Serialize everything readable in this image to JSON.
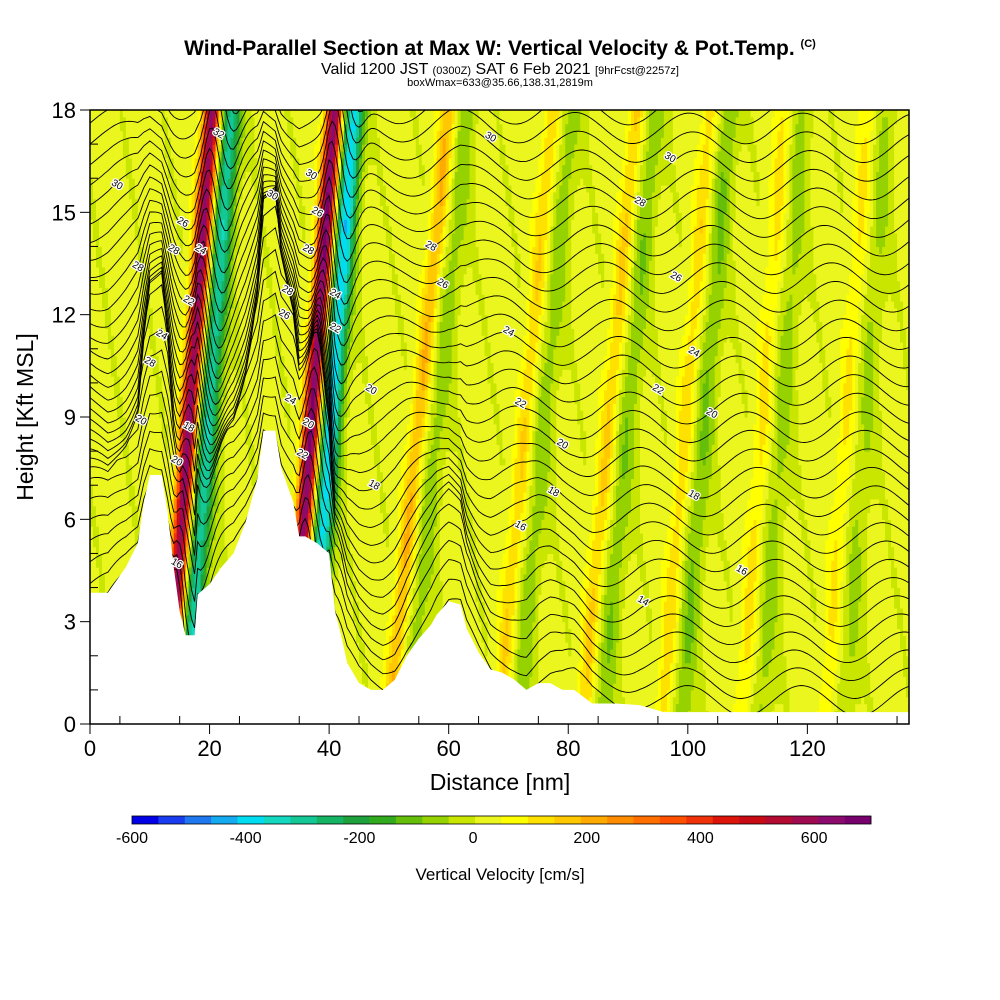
{
  "header": {
    "title_main": "Wind-Parallel Section at Max W: Vertical Velocity & Pot.Temp.",
    "title_mark": "(C)",
    "valid_prefix": "Valid 1200 JST",
    "valid_utc": "(0300Z)",
    "valid_date": "SAT 6 Feb 2021",
    "valid_fcst": "[9hrFcst@2257z]",
    "subtitle": "boxWmax=633@35.66,138.31,2819m"
  },
  "chart_data": {
    "type": "heatmap",
    "xlabel": "Distance [nm]",
    "ylabel": "Height [Kft MSL]",
    "xlim": [
      0,
      137
    ],
    "ylim": [
      0,
      18
    ],
    "x_ticks": [
      0,
      20,
      40,
      60,
      80,
      100,
      120
    ],
    "y_ticks": [
      0,
      3,
      6,
      9,
      12,
      15,
      18
    ],
    "colorbar": {
      "label": "Vertical Velocity [cm/s]",
      "range": [
        -600,
        700
      ],
      "ticks": [
        -600,
        -400,
        -200,
        0,
        200,
        400,
        600
      ],
      "colors": [
        "#0000e6",
        "#1a3cf0",
        "#1f78f0",
        "#14aaf0",
        "#00dcf0",
        "#14d8c0",
        "#14c896",
        "#14b464",
        "#1ea03c",
        "#32aa1e",
        "#64be0a",
        "#96d200",
        "#c8e600",
        "#ebf51e",
        "#ffff00",
        "#ffe100",
        "#ffc800",
        "#ffaa00",
        "#ff8c00",
        "#ff6e00",
        "#ff5000",
        "#f0320a",
        "#dc140a",
        "#c80a14",
        "#b40a32",
        "#a00a50",
        "#8c0a6e",
        "#78006e"
      ]
    },
    "terrain_ft": [
      [
        0,
        3.85
      ],
      [
        3,
        3.85
      ],
      [
        6,
        4.6
      ],
      [
        8,
        5.3
      ],
      [
        9,
        6.5
      ],
      [
        10,
        7.3
      ],
      [
        12,
        7.3
      ],
      [
        13,
        6.2
      ],
      [
        14,
        4.6
      ],
      [
        15,
        3.3
      ],
      [
        16,
        2.6
      ],
      [
        17.5,
        2.6
      ],
      [
        18,
        3.8
      ],
      [
        20,
        4.1
      ],
      [
        22,
        4.6
      ],
      [
        24,
        5.0
      ],
      [
        26,
        5.9
      ],
      [
        28,
        7.2
      ],
      [
        29,
        8.6
      ],
      [
        31,
        8.6
      ],
      [
        32,
        7.5
      ],
      [
        34,
        6.5
      ],
      [
        35,
        5.5
      ],
      [
        36,
        5.5
      ],
      [
        38,
        5.3
      ],
      [
        40,
        5.0
      ],
      [
        41,
        3.3
      ],
      [
        42,
        2.6
      ],
      [
        43,
        1.8
      ],
      [
        45,
        1.2
      ],
      [
        47,
        1.0
      ],
      [
        49,
        1.0
      ],
      [
        51,
        1.3
      ],
      [
        53,
        2.0
      ],
      [
        55,
        2.5
      ],
      [
        57,
        2.9
      ],
      [
        58,
        3.2
      ],
      [
        60,
        3.6
      ],
      [
        62,
        3.5
      ],
      [
        63,
        2.8
      ],
      [
        65,
        2.1
      ],
      [
        67,
        1.6
      ],
      [
        69,
        1.5
      ],
      [
        71,
        1.3
      ],
      [
        73,
        1.0
      ],
      [
        75,
        1.2
      ],
      [
        77,
        1.2
      ],
      [
        79,
        1.0
      ],
      [
        81,
        1.0
      ],
      [
        84,
        0.6
      ],
      [
        88,
        0.6
      ],
      [
        92,
        0.55
      ],
      [
        96,
        0.35
      ],
      [
        100,
        0.35
      ],
      [
        110,
        0.35
      ],
      [
        120,
        0.35
      ],
      [
        130,
        0.35
      ],
      [
        137,
        0.35
      ]
    ],
    "contour_labels": [
      {
        "text": "30",
        "x": 4.5,
        "y": 15.8
      },
      {
        "text": "28",
        "x": 8,
        "y": 13.4
      },
      {
        "text": "28",
        "x": 10,
        "y": 10.6
      },
      {
        "text": "24",
        "x": 12,
        "y": 11.4
      },
      {
        "text": "20",
        "x": 8.5,
        "y": 8.9
      },
      {
        "text": "28",
        "x": 14,
        "y": 13.9
      },
      {
        "text": "26",
        "x": 15.5,
        "y": 14.7
      },
      {
        "text": "24",
        "x": 18.5,
        "y": 13.9
      },
      {
        "text": "22",
        "x": 16.5,
        "y": 12.4
      },
      {
        "text": "18",
        "x": 16.5,
        "y": 8.7
      },
      {
        "text": "20",
        "x": 14.5,
        "y": 7.7
      },
      {
        "text": "16",
        "x": 14.5,
        "y": 4.7
      },
      {
        "text": "32",
        "x": 21.5,
        "y": 17.3
      },
      {
        "text": "30",
        "x": 30.5,
        "y": 15.5
      },
      {
        "text": "28",
        "x": 33,
        "y": 12.7
      },
      {
        "text": "26",
        "x": 32.5,
        "y": 12.0
      },
      {
        "text": "24",
        "x": 33.5,
        "y": 9.5
      },
      {
        "text": "22",
        "x": 35.5,
        "y": 7.9
      },
      {
        "text": "30",
        "x": 37,
        "y": 16.1
      },
      {
        "text": "28",
        "x": 36.5,
        "y": 13.9
      },
      {
        "text": "26",
        "x": 38,
        "y": 15.0
      },
      {
        "text": "24",
        "x": 41,
        "y": 12.6
      },
      {
        "text": "22",
        "x": 41,
        "y": 11.6
      },
      {
        "text": "20",
        "x": 36.5,
        "y": 8.8
      },
      {
        "text": "20",
        "x": 47,
        "y": 9.8
      },
      {
        "text": "18",
        "x": 47.5,
        "y": 7.0
      },
      {
        "text": "30",
        "x": 67,
        "y": 17.2
      },
      {
        "text": "28",
        "x": 57,
        "y": 14.0
      },
      {
        "text": "26",
        "x": 59,
        "y": 12.9
      },
      {
        "text": "24",
        "x": 70,
        "y": 11.5
      },
      {
        "text": "22",
        "x": 72,
        "y": 9.4
      },
      {
        "text": "20",
        "x": 79,
        "y": 8.2
      },
      {
        "text": "18",
        "x": 77.5,
        "y": 6.8
      },
      {
        "text": "16",
        "x": 72,
        "y": 5.8
      },
      {
        "text": "30",
        "x": 97,
        "y": 16.6
      },
      {
        "text": "28",
        "x": 92,
        "y": 15.3
      },
      {
        "text": "26",
        "x": 98,
        "y": 13.1
      },
      {
        "text": "24",
        "x": 101,
        "y": 10.9
      },
      {
        "text": "22",
        "x": 95,
        "y": 9.8
      },
      {
        "text": "20",
        "x": 104,
        "y": 9.1
      },
      {
        "text": "18",
        "x": 101,
        "y": 6.7
      },
      {
        "text": "16",
        "x": 109,
        "y": 4.5
      },
      {
        "text": "14",
        "x": 92.5,
        "y": 3.6
      }
    ]
  }
}
